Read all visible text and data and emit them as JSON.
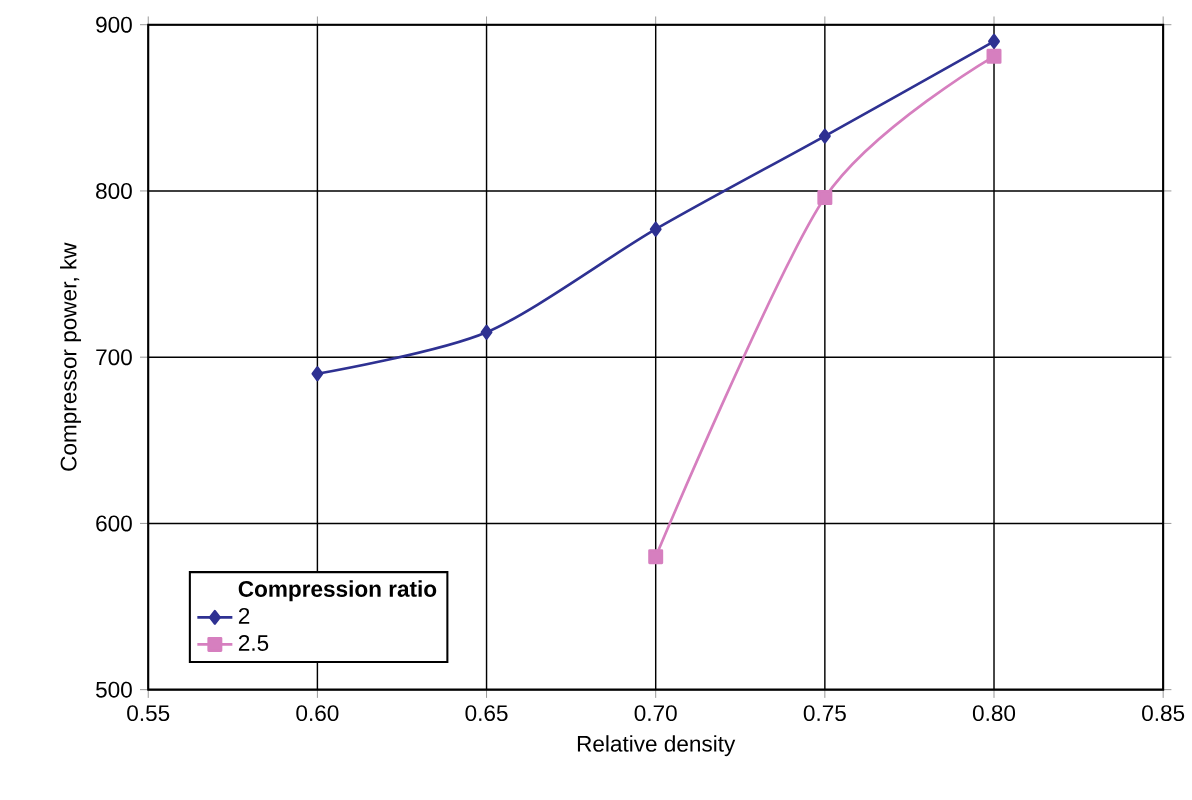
{
  "chart_data": {
    "type": "line",
    "xlabel": "Relative density",
    "ylabel": "Compressor power, kw",
    "legend_title": "Compression ratio",
    "series": [
      {
        "name": "2",
        "color": "#2e3192",
        "marker": "diamond",
        "x": [
          0.6,
          0.65,
          0.7,
          0.75,
          0.8
        ],
        "values": [
          690,
          715,
          777,
          833,
          890
        ]
      },
      {
        "name": "2.5",
        "color": "#d67fbf",
        "marker": "square",
        "x": [
          0.7,
          0.75,
          0.8
        ],
        "values": [
          580,
          796,
          881
        ]
      }
    ],
    "xlim": [
      0.55,
      0.85
    ],
    "xticks": [
      {
        "value": 0.55,
        "label": "0.55"
      },
      {
        "value": 0.6,
        "label": "0.60"
      },
      {
        "value": 0.65,
        "label": "0.65"
      },
      {
        "value": 0.7,
        "label": "0.70"
      },
      {
        "value": 0.75,
        "label": "0.75"
      },
      {
        "value": 0.8,
        "label": "0.80"
      },
      {
        "value": 0.85,
        "label": "0.85"
      }
    ],
    "ylim": [
      500,
      900
    ],
    "yticks": [
      500,
      600,
      700,
      800,
      900
    ],
    "grid": true,
    "legend": "bottom left",
    "line_style": "solid"
  }
}
